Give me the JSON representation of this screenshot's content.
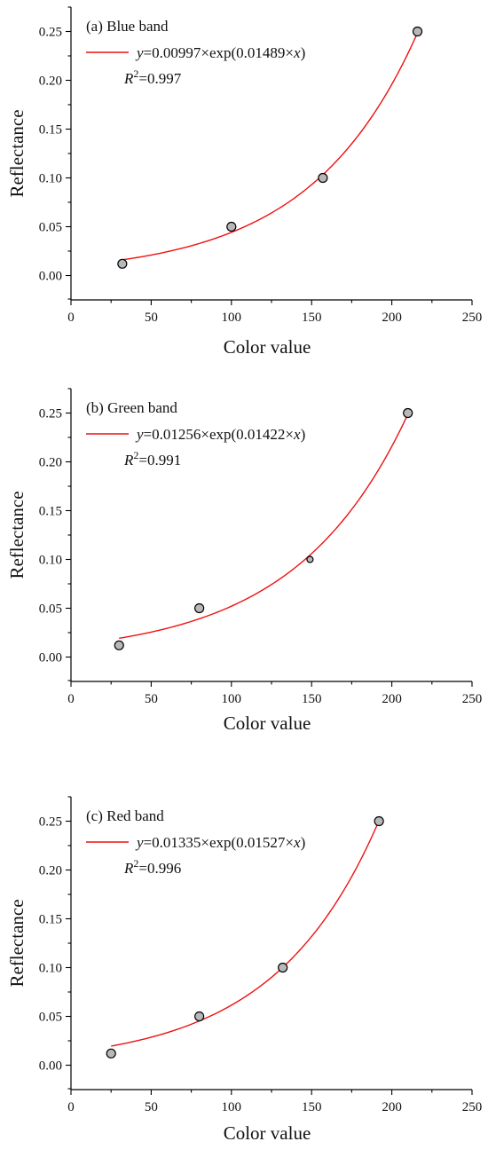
{
  "chart_data": [
    {
      "type": "scatter",
      "title": "(a) Blue band",
      "xlabel": "Color value",
      "ylabel": "Reflectance",
      "xlim": [
        0,
        250
      ],
      "ylim": [
        -0.025,
        0.275
      ],
      "xticks": [
        0,
        50,
        100,
        150,
        200,
        250
      ],
      "yticks": [
        "0.00",
        "0.05",
        "0.10",
        "0.15",
        "0.20",
        "0.25"
      ],
      "points": [
        {
          "x": 32,
          "y": 0.012
        },
        {
          "x": 100,
          "y": 0.05
        },
        {
          "x": 157,
          "y": 0.1
        },
        {
          "x": 216,
          "y": 0.25
        }
      ],
      "fit": {
        "a": 0.00997,
        "b": 0.01489,
        "x_range": [
          32,
          216
        ]
      },
      "legend": {
        "equation_prefix": "y",
        "equation_rest": "=0.00997×exp(0.01489×",
        "equation_var": "x",
        "equation_close": ")",
        "r2_symbol": "R",
        "r2_power": "2",
        "r2_value": "=0.997"
      }
    },
    {
      "type": "scatter",
      "title": "(b) Green band",
      "xlabel": "Color value",
      "ylabel": "Reflectance",
      "xlim": [
        0,
        250
      ],
      "ylim": [
        -0.025,
        0.275
      ],
      "xticks": [
        0,
        50,
        100,
        150,
        200,
        250
      ],
      "yticks": [
        "0.00",
        "0.05",
        "0.10",
        "0.15",
        "0.20",
        "0.25"
      ],
      "points": [
        {
          "x": 30,
          "y": 0.012
        },
        {
          "x": 80,
          "y": 0.05
        },
        {
          "x": 149,
          "y": 0.1
        },
        {
          "x": 210,
          "y": 0.25
        }
      ],
      "fit": {
        "a": 0.01256,
        "b": 0.01422,
        "x_range": [
          30,
          210
        ]
      },
      "legend": {
        "equation_prefix": "y",
        "equation_rest": "=0.01256×exp(0.01422×",
        "equation_var": "x",
        "equation_close": ")",
        "r2_symbol": "R",
        "r2_power": "2",
        "r2_value": "=0.991"
      }
    },
    {
      "type": "scatter",
      "title": "(c) Red band",
      "xlabel": "Color value",
      "ylabel": "Reflectance",
      "xlim": [
        0,
        250
      ],
      "ylim": [
        -0.025,
        0.275
      ],
      "xticks": [
        0,
        50,
        100,
        150,
        200,
        250
      ],
      "yticks": [
        "0.00",
        "0.05",
        "0.10",
        "0.15",
        "0.20",
        "0.25"
      ],
      "points": [
        {
          "x": 25,
          "y": 0.012
        },
        {
          "x": 80,
          "y": 0.05
        },
        {
          "x": 132,
          "y": 0.1
        },
        {
          "x": 192,
          "y": 0.25
        }
      ],
      "fit": {
        "a": 0.01335,
        "b": 0.01527,
        "x_range": [
          25,
          192
        ]
      },
      "legend": {
        "equation_prefix": "y",
        "equation_rest": "=0.01335×exp(0.01527×",
        "equation_var": "x",
        "equation_close": ")",
        "r2_symbol": "R",
        "r2_power": "2",
        "r2_value": "=0.996"
      }
    }
  ],
  "colors": {
    "fit_line": "#ee1111",
    "point_fill": "#b8b8b8",
    "point_stroke": "#000000",
    "axis": "#000000"
  }
}
